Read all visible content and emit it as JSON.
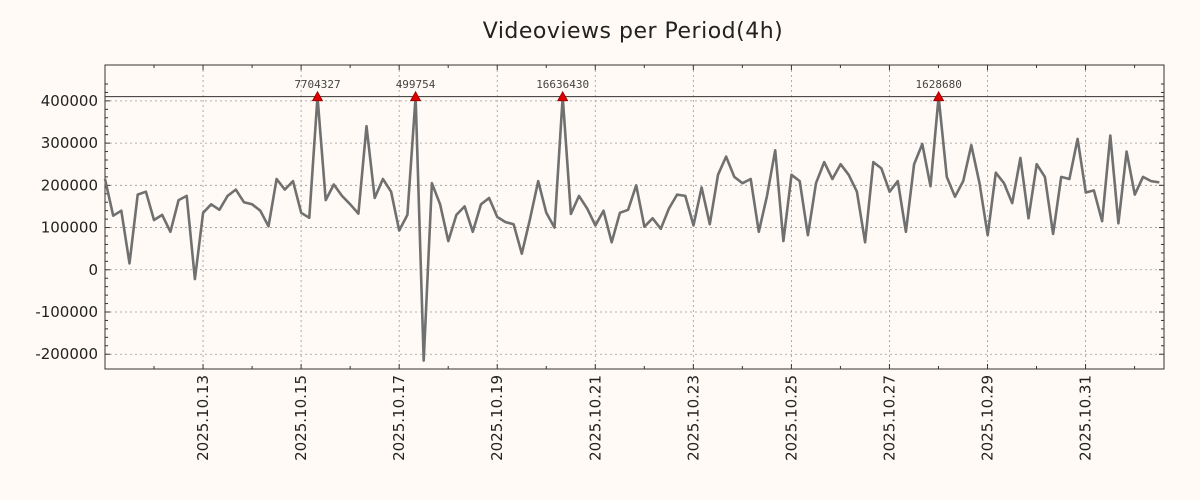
{
  "chart_data": {
    "type": "line",
    "title": "Videoviews per Period(4h)",
    "xlabel": "",
    "ylabel": "",
    "x_start": "2025.10.11",
    "x_end": "2025.11.02",
    "xlim_days": [
      0,
      21.6
    ],
    "ylim": [
      -235000,
      485000
    ],
    "yticks": [
      400000,
      300000,
      200000,
      100000,
      0,
      -100000,
      -200000
    ],
    "ytick_labels": [
      "400000",
      "300000",
      "200000",
      "100000",
      "0",
      "-100000",
      "-200000"
    ],
    "xticks_days": [
      2,
      4,
      6,
      8,
      10,
      12,
      14,
      16,
      18,
      20
    ],
    "xtick_labels": [
      "2025.10.13",
      "2025.10.15",
      "2025.10.17",
      "2025.10.19",
      "2025.10.21",
      "2025.10.23",
      "2025.10.25",
      "2025.10.27",
      "2025.10.29",
      "2025.10.31"
    ],
    "cap_value": 410000,
    "grid": true,
    "series": [
      {
        "name": "Videoviews",
        "color": "#707070",
        "interval_days": 0.1667,
        "values": [
          215000,
          128000,
          140000,
          15000,
          178000,
          185000,
          118000,
          130000,
          90000,
          165000,
          175000,
          -22000,
          135000,
          155000,
          142000,
          175000,
          190000,
          160000,
          155000,
          140000,
          103000,
          215000,
          190000,
          210000,
          135000,
          123000,
          410000,
          165000,
          202000,
          175000,
          155000,
          133000,
          340000,
          170000,
          215000,
          185000,
          93000,
          130000,
          410000,
          -215000,
          205000,
          155000,
          68000,
          130000,
          150000,
          90000,
          155000,
          170000,
          125000,
          113000,
          108000,
          38000,
          120000,
          210000,
          135000,
          100000,
          410000,
          132000,
          175000,
          145000,
          105000,
          140000,
          65000,
          135000,
          142000,
          200000,
          102000,
          122000,
          97000,
          145000,
          178000,
          175000,
          105000,
          195000,
          108000,
          225000,
          268000,
          220000,
          205000,
          215000,
          90000,
          175000,
          283000,
          68000,
          225000,
          210000,
          82000,
          205000,
          255000,
          215000,
          250000,
          225000,
          185000,
          65000,
          255000,
          240000,
          185000,
          210000,
          90000,
          250000,
          298000,
          198000,
          410000,
          220000,
          173000,
          210000,
          295000,
          205000,
          82000,
          230000,
          205000,
          158000,
          265000,
          122000,
          250000,
          220000,
          85000,
          220000,
          215000,
          310000,
          183000,
          188000,
          115000,
          318000,
          110000,
          280000,
          178000,
          220000,
          210000,
          207000
        ]
      }
    ],
    "peaks": [
      {
        "index": 26,
        "label": "7704327"
      },
      {
        "index": 38,
        "label": "499754"
      },
      {
        "index": 56,
        "label": "16636430"
      },
      {
        "index": 102,
        "label": "1628680"
      }
    ],
    "marker_color": "#dd0000"
  }
}
